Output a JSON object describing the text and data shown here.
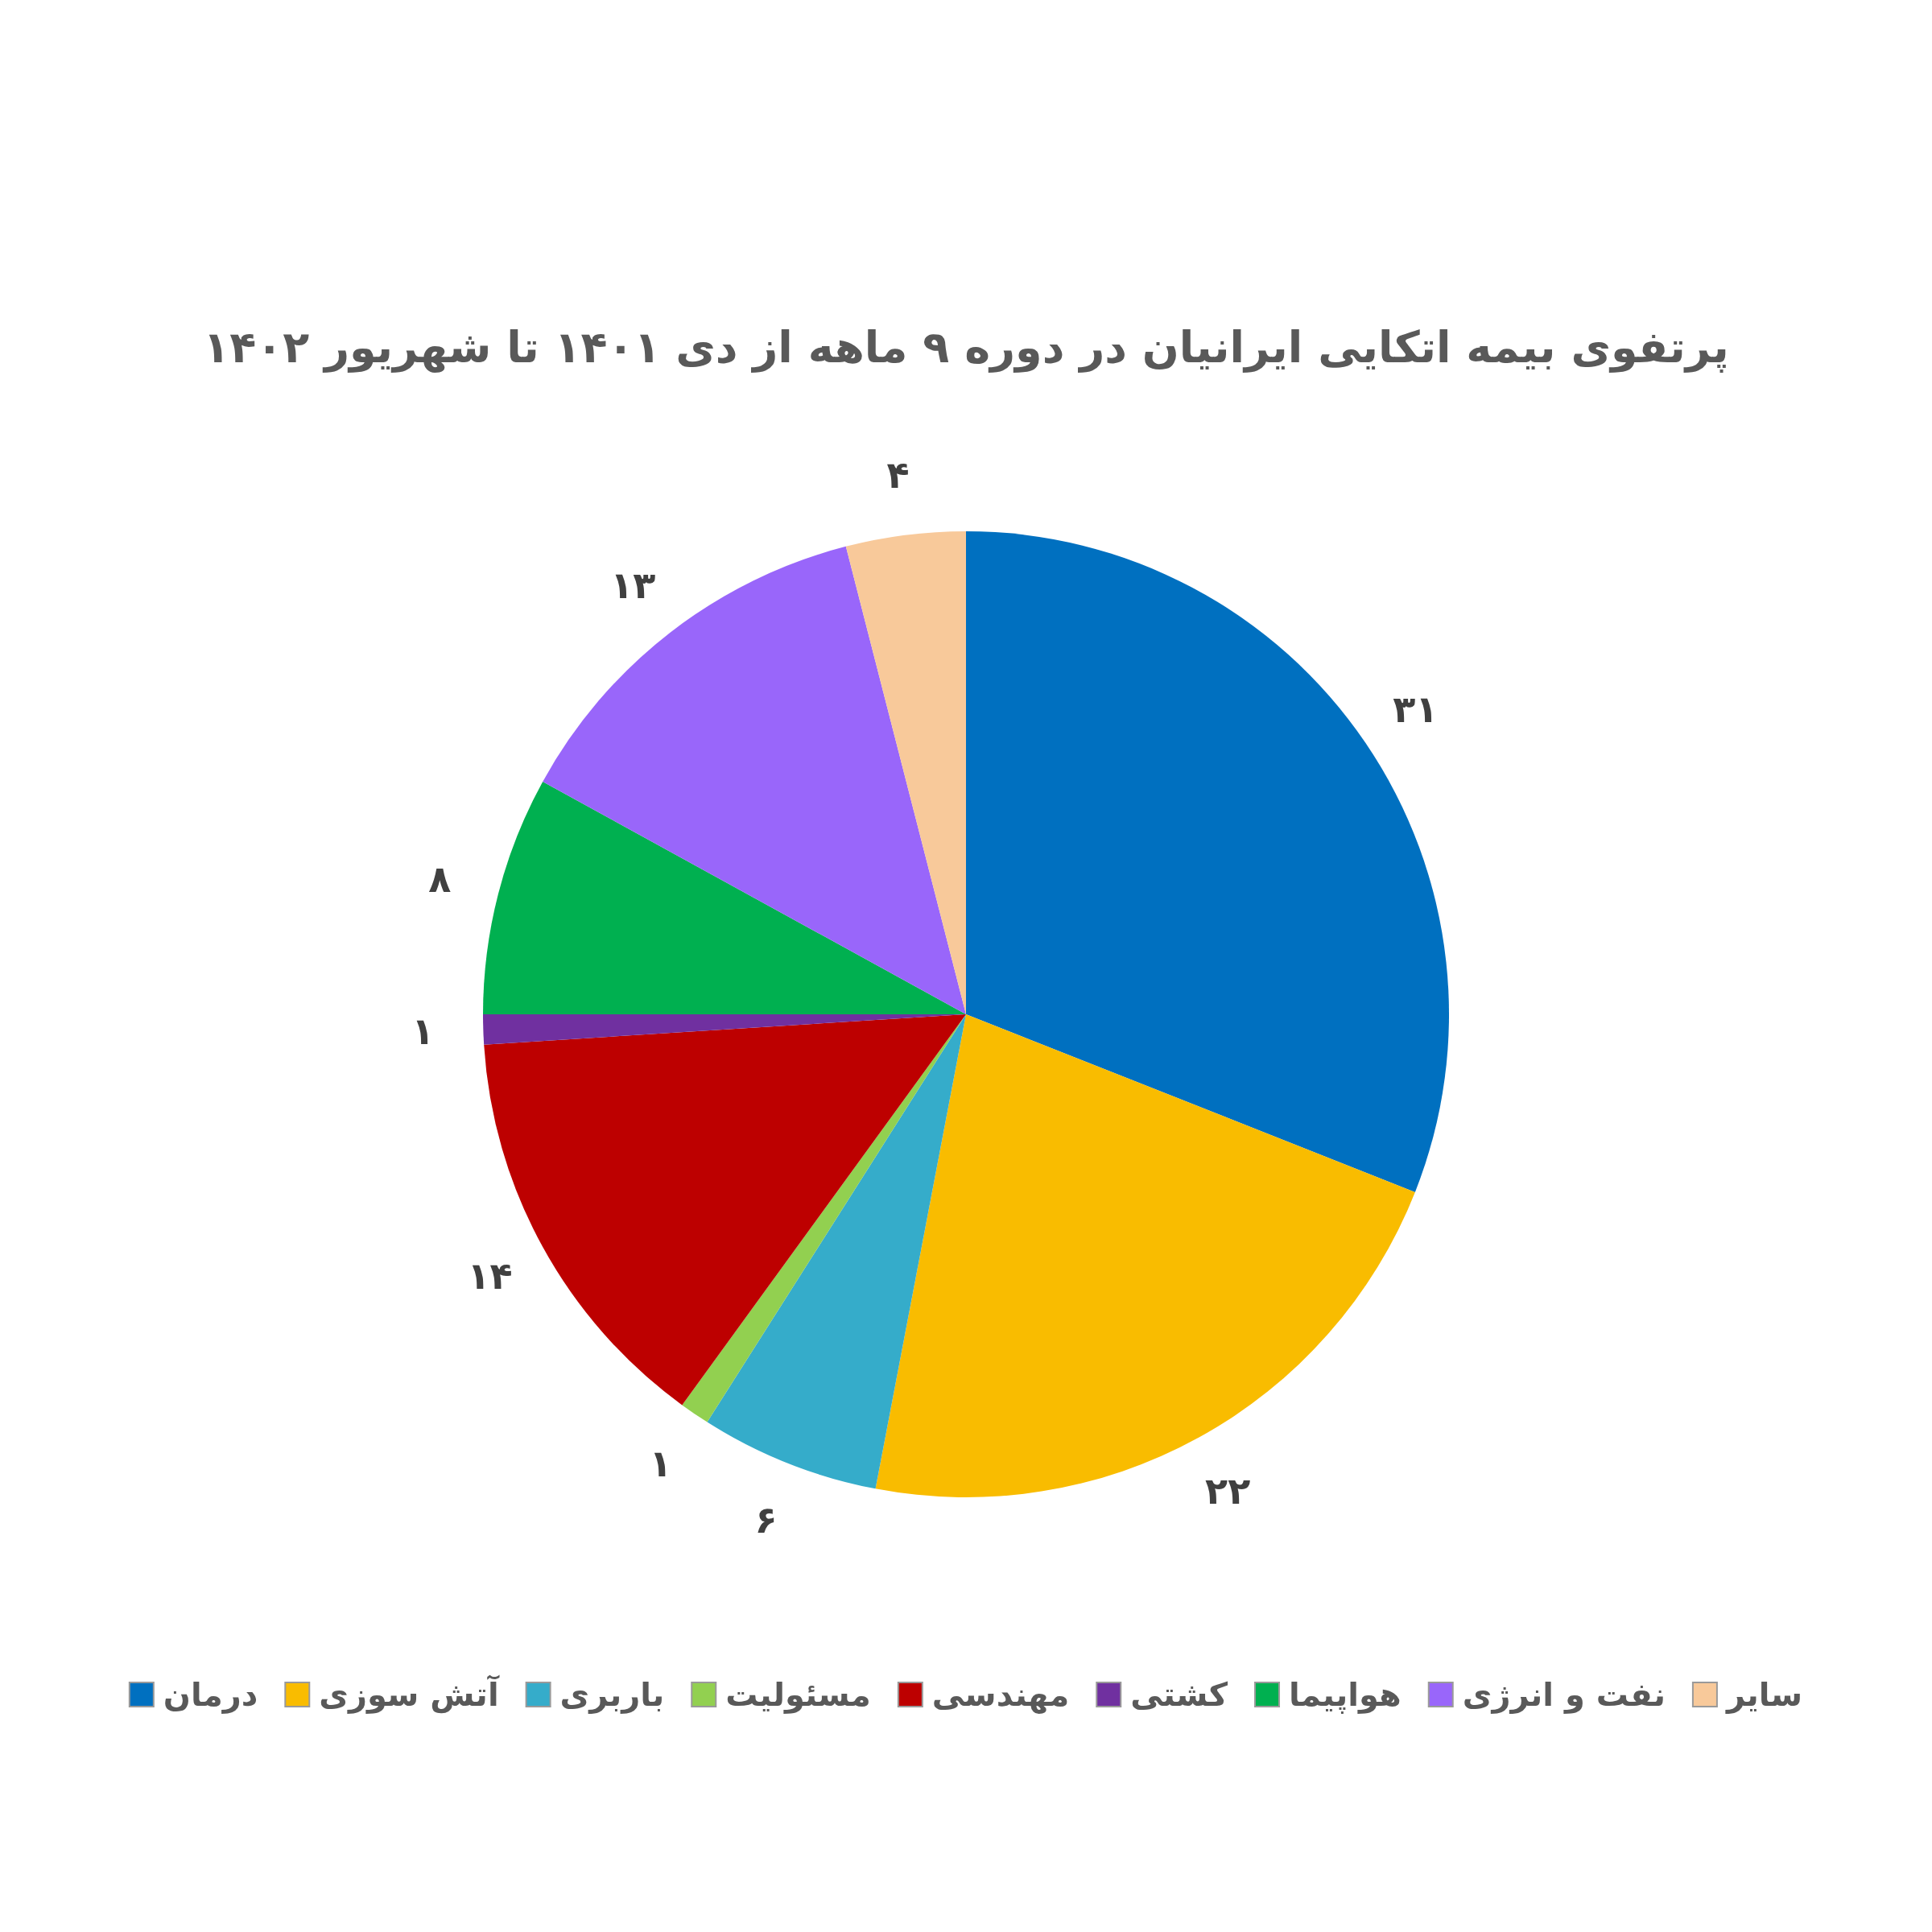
{
  "chart_data": {
    "type": "pie",
    "title": "پرتفوی بیمه اتکایی ایرانیان در دوره ۹ ماهه از دی ۱۴۰۱ تا شهریور ۱۴۰۲",
    "categories": [
      "درمان",
      "آتش سوزی",
      "باربری",
      "مسئولیت",
      "مهندسی",
      "کشتی",
      "هواپیما",
      "نفت و انرژی",
      "سایر"
    ],
    "values": [
      31,
      22,
      6,
      1,
      14,
      1,
      8,
      13,
      4
    ],
    "colors": [
      "#0070c0",
      "#f9bc00",
      "#35acca",
      "#92d050",
      "#bd0000",
      "#7030a0",
      "#00b050",
      "#9966fa",
      "#f8c99a"
    ],
    "value_labels": [
      "۳۱",
      "۲۲",
      "۶",
      "۱",
      "۱۴",
      "۱",
      "۸",
      "۱۳",
      "۴"
    ],
    "legend": "bottom"
  }
}
